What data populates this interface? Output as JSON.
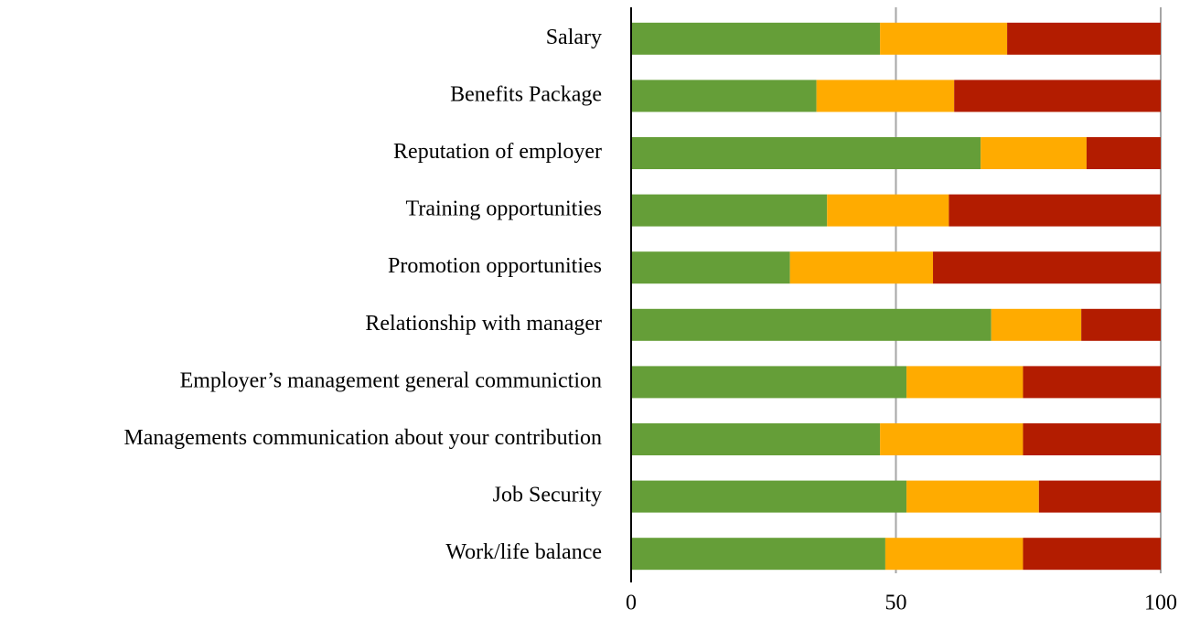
{
  "chart_data": {
    "type": "stacked_bar_horizontal",
    "categories": [
      "Salary",
      "Benefits Package",
      "Reputation of employer",
      "Training opportunities",
      "Promotion opportunities",
      "Relationship with manager",
      "Employer’s management general communiction",
      "Managements communication about your contribution",
      "Job Security",
      "Work/life balance"
    ],
    "series": [
      {
        "color": "#659e38",
        "values": [
          47,
          35,
          66,
          37,
          30,
          68,
          52,
          47,
          52,
          48
        ]
      },
      {
        "color": "#ffab00",
        "values": [
          24,
          26,
          20,
          23,
          27,
          17,
          22,
          27,
          25,
          26
        ]
      },
      {
        "color": "#b31c00",
        "values": [
          29,
          39,
          14,
          40,
          43,
          15,
          26,
          26,
          23,
          26
        ]
      }
    ],
    "xlim": [
      0,
      100
    ],
    "xticks": [
      0,
      50,
      100
    ],
    "grid": true
  }
}
